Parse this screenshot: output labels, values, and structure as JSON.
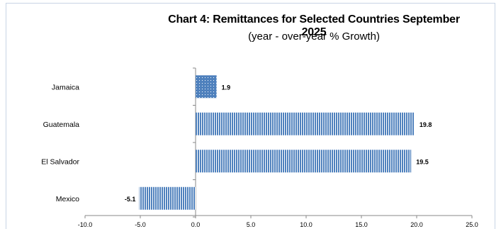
{
  "chart_data": {
    "type": "bar",
    "orientation": "horizontal",
    "title": "Chart 4:  Remittances for Selected Countries September 2025",
    "subtitle": "(year - over-year % Growth)",
    "categories": [
      "Jamaica",
      "Guatemala",
      "El Salvador",
      "Mexico"
    ],
    "values": [
      1.9,
      19.8,
      19.5,
      -5.1
    ],
    "data_labels": [
      "1.9",
      "19.8",
      "19.5",
      "-5.1"
    ],
    "xlim": [
      -10,
      25
    ],
    "x_ticks": [
      -10,
      -5,
      0,
      5,
      10,
      15,
      20,
      25
    ],
    "x_tick_labels": [
      "-10.0",
      "-5.0",
      "0.0",
      "5.0",
      "10.0",
      "15.0",
      "20.0",
      "25.0"
    ],
    "xlabel": "",
    "ylabel": "",
    "grid": false,
    "legend": "none",
    "bar_color": "#4f81bd",
    "highlight_pattern": "Jamaica"
  }
}
